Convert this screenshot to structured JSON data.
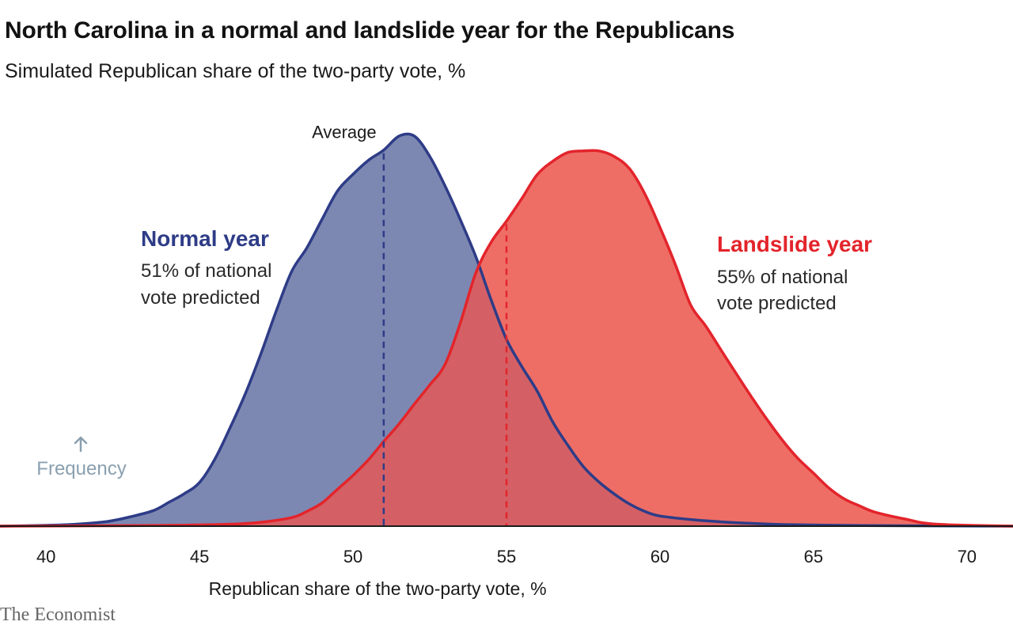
{
  "title": "North Carolina in a normal and landslide year for the Republicans",
  "subtitle": "Simulated Republican share of the two-party vote, %",
  "source": "The Economist",
  "chart_data": {
    "type": "area",
    "xlabel": "Republican share of the two-party vote, %",
    "ylabel": "Frequency",
    "xlim": [
      38.5,
      71.5
    ],
    "ylim": [
      0,
      1
    ],
    "xticks": [
      "40",
      "45",
      "50",
      "55",
      "60",
      "65",
      "70"
    ],
    "grid": false,
    "average_label": "Average",
    "colors": {
      "normal": "#2e3c87",
      "normal_fill": "#7d88b2",
      "landslide": "#e3242b",
      "landslide_fill": "#ee6e66",
      "overlap_fill": "#d46065",
      "frequency": "#8aa0b0"
    },
    "series": [
      {
        "name": "Normal year",
        "note": [
          "51% of national",
          "vote predicted"
        ],
        "average": 51,
        "x": [
          38.5,
          40,
          41,
          42,
          42.8,
          43.5,
          44,
          44.5,
          45,
          45.5,
          46,
          46.5,
          47,
          47.5,
          48,
          48.5,
          49,
          49.5,
          50,
          50.5,
          51,
          51.5,
          52,
          52.5,
          53,
          53.5,
          54,
          54.5,
          55,
          55.5,
          56,
          56.5,
          57,
          57.5,
          58,
          58.5,
          59,
          59.5,
          60,
          61,
          62,
          63,
          64,
          66,
          68,
          71.5
        ],
        "values": [
          0,
          0.002,
          0.005,
          0.012,
          0.025,
          0.04,
          0.061,
          0.083,
          0.112,
          0.172,
          0.253,
          0.341,
          0.442,
          0.552,
          0.653,
          0.714,
          0.788,
          0.86,
          0.902,
          0.938,
          0.964,
          1.0,
          1.0,
          0.948,
          0.872,
          0.785,
          0.691,
          0.58,
          0.479,
          0.409,
          0.346,
          0.268,
          0.207,
          0.153,
          0.114,
          0.083,
          0.057,
          0.038,
          0.026,
          0.017,
          0.011,
          0.007,
          0.004,
          0.002,
          0.001,
          0
        ]
      },
      {
        "name": "Landslide year",
        "note": [
          "55% of national",
          "vote predicted"
        ],
        "average": 55,
        "x": [
          38.5,
          42,
          44,
          46,
          47,
          48,
          48.5,
          49,
          49.5,
          50,
          50.5,
          51,
          51.5,
          52,
          52.5,
          53,
          53.5,
          54,
          54.5,
          55,
          55.5,
          56,
          56.5,
          57,
          57.5,
          58,
          58.5,
          59,
          59.5,
          60,
          60.5,
          61,
          61.5,
          62,
          62.5,
          63,
          63.5,
          64,
          64.5,
          65,
          65.5,
          66,
          66.5,
          67,
          68,
          69,
          71.5
        ],
        "values": [
          0,
          0.001,
          0.002,
          0.005,
          0.01,
          0.022,
          0.038,
          0.06,
          0.095,
          0.13,
          0.17,
          0.217,
          0.262,
          0.313,
          0.362,
          0.415,
          0.522,
          0.649,
          0.728,
          0.782,
          0.84,
          0.901,
          0.935,
          0.958,
          0.962,
          0.962,
          0.948,
          0.917,
          0.853,
          0.766,
          0.671,
          0.567,
          0.512,
          0.45,
          0.389,
          0.329,
          0.272,
          0.219,
          0.173,
          0.136,
          0.098,
          0.07,
          0.052,
          0.036,
          0.018,
          0.005,
          0
        ]
      }
    ]
  }
}
